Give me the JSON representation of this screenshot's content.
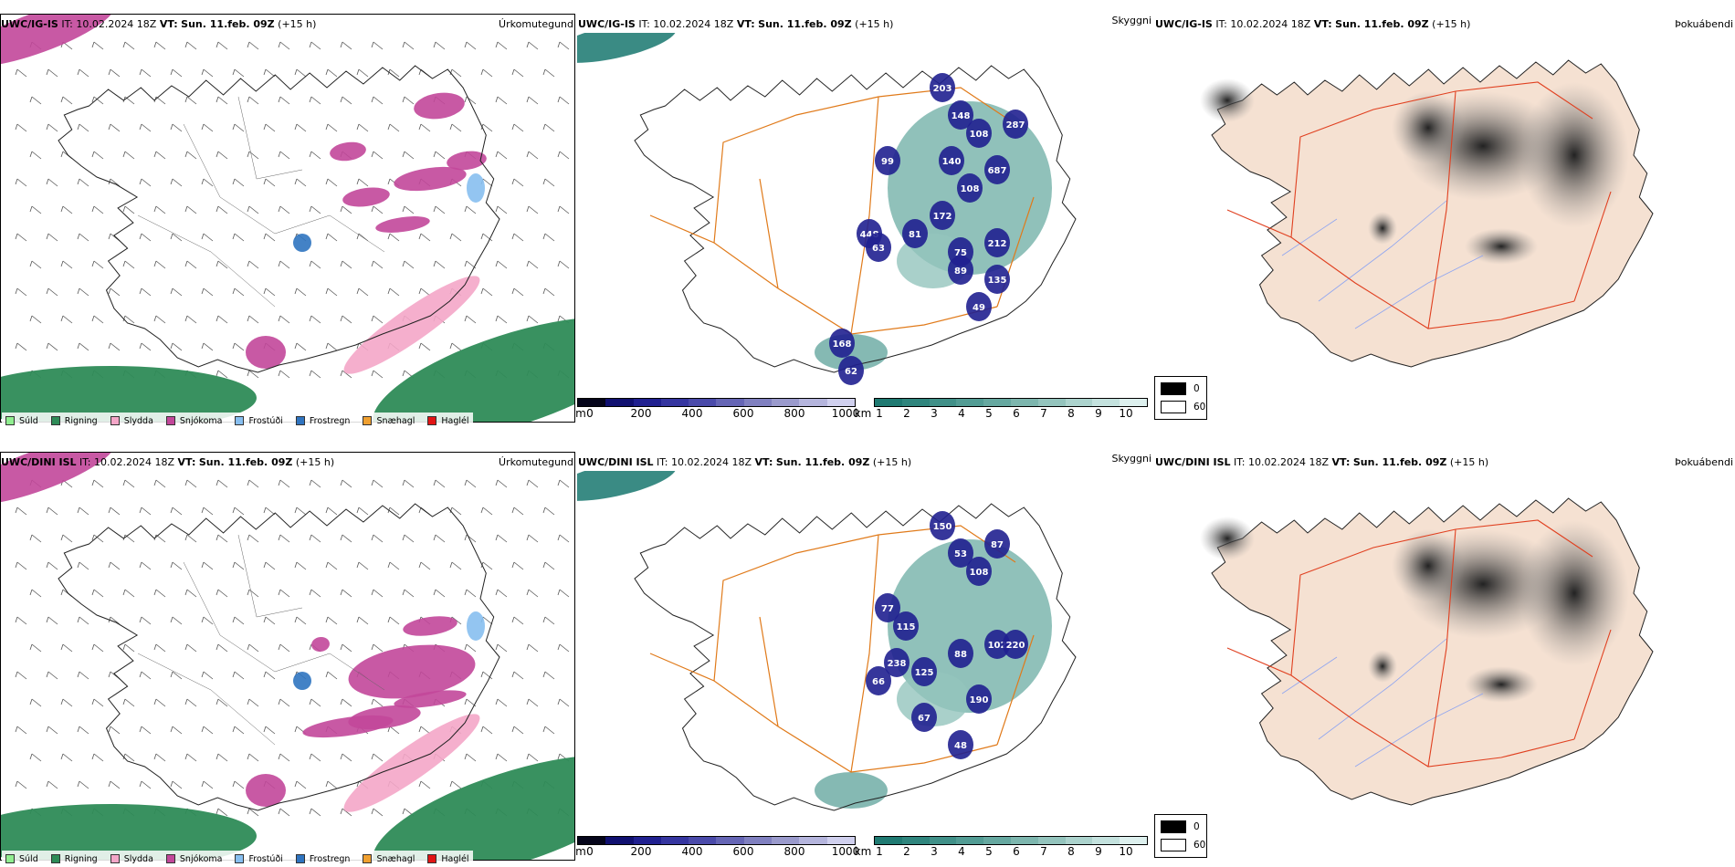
{
  "rows": [
    {
      "model": "UWC/IG-IS",
      "it_label": "IT:",
      "it_value": "10.02.2024 18Z",
      "vt_label": "VT:",
      "vt_value": "Sun. 11.feb. 09Z",
      "lead": "(+15 h)"
    },
    {
      "model": "UWC/DINI ISL",
      "it_label": "IT:",
      "it_value": "10.02.2024 18Z",
      "vt_label": "VT:",
      "vt_value": "Sun. 11.feb. 09Z",
      "lead": "(+15 h)"
    }
  ],
  "panel_titles": {
    "precip": "Úrkomutegund",
    "cloud": "Skyggni",
    "fog": "Þokuábendi"
  },
  "precip_legend": [
    {
      "label": "Súld",
      "color": "#90ee90"
    },
    {
      "label": "Rigning",
      "color": "#2e8b57"
    },
    {
      "label": "Slydda",
      "color": "#f4a6c8"
    },
    {
      "label": "Snjókoma",
      "color": "#c2479a"
    },
    {
      "label": "Frostúði",
      "color": "#87bff0"
    },
    {
      "label": "Frostregn",
      "color": "#2f74c0"
    },
    {
      "label": "Snæhagl",
      "color": "#f0a030"
    },
    {
      "label": "Haglél",
      "color": "#e21515"
    }
  ],
  "cloud_base_scale": {
    "ticks": [
      "0",
      "200",
      "400",
      "600",
      "800",
      "1000"
    ],
    "unit_left": "m",
    "colors": [
      "#05051a",
      "#101070",
      "#202090",
      "#3535a0",
      "#4a4aaa",
      "#6565b5",
      "#8080c0",
      "#9a9acc",
      "#b5b5dd",
      "#d0d0ee"
    ]
  },
  "visibility_scale": {
    "unit": "km",
    "ticks": [
      "1",
      "2",
      "3",
      "4",
      "5",
      "6",
      "7",
      "8",
      "9",
      "10"
    ],
    "colors": [
      "#1f7a72",
      "#2f857d",
      "#409088",
      "#529c94",
      "#66a8a0",
      "#7db6ae",
      "#94c4bd",
      "#acd3cd",
      "#c4e2de",
      "#ddf0ee"
    ]
  },
  "fog_legend": [
    {
      "value": "0",
      "color": "#000000"
    },
    {
      "value": "60",
      "color": "#ffffff"
    }
  ],
  "cloud_labels": [
    [
      "203",
      "148",
      "108",
      "287",
      "99",
      "140",
      "108",
      "687",
      "172",
      "81",
      "75",
      "212",
      "448",
      "89",
      "63",
      "135",
      "49",
      "168",
      "62"
    ],
    [
      "150",
      "53",
      "87",
      "108",
      "77",
      "115",
      "238",
      "125",
      "88",
      "102",
      "220",
      "66",
      "190",
      "67",
      "48"
    ]
  ],
  "colors": {
    "road": "#e07a1a",
    "fog_land": "#f5e1d2",
    "fog_road": "#e04020",
    "fog_river": "#8fa5f0",
    "coast": "#1a1a1a"
  }
}
